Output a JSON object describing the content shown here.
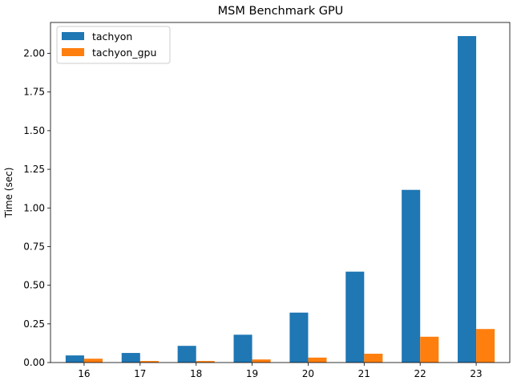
{
  "chart_data": {
    "type": "bar",
    "title": "MSM Benchmark GPU",
    "xlabel": "",
    "ylabel": "Time (sec)",
    "categories": [
      "16",
      "17",
      "18",
      "19",
      "20",
      "21",
      "22",
      "23"
    ],
    "series": [
      {
        "name": "tachyon",
        "color": "#1f77b4",
        "values": [
          0.046,
          0.062,
          0.108,
          0.18,
          0.323,
          0.588,
          1.117,
          2.112
        ]
      },
      {
        "name": "tachyon_gpu",
        "color": "#ff7f0e",
        "values": [
          0.025,
          0.01,
          0.01,
          0.02,
          0.032,
          0.057,
          0.167,
          0.217
        ]
      }
    ],
    "ylim": [
      0,
      2.2
    ],
    "yticks": [
      0.0,
      0.25,
      0.5,
      0.75,
      1.0,
      1.25,
      1.5,
      1.75,
      2.0
    ],
    "ytick_labels": [
      "0.00",
      "0.25",
      "0.50",
      "0.75",
      "1.00",
      "1.25",
      "1.50",
      "1.75",
      "2.00"
    ],
    "grid": false,
    "legend": "top-left"
  }
}
